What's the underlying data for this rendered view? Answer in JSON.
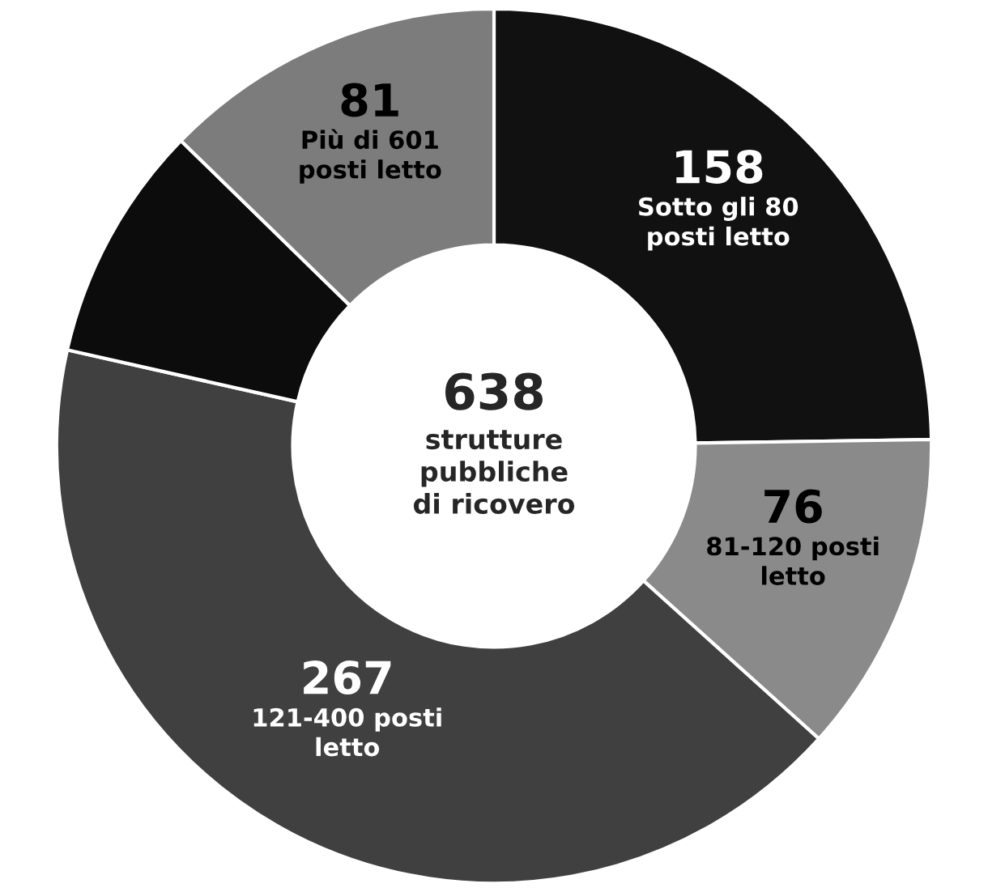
{
  "chart_data": {
    "type": "donut",
    "categories": [
      "Sotto gli 80 posti letto",
      "81-120 posti letto",
      "121-400 posti letto",
      null,
      "Più di 601 posti letto"
    ],
    "values": [
      158,
      76,
      267,
      56,
      81
    ],
    "value_labels": [
      "158",
      "76",
      "267",
      null,
      "81"
    ],
    "colors": [
      "#111111",
      "#8a8a8a",
      "#404040",
      "#0c0c0c",
      "#7c7c7c"
    ],
    "annotations": [
      "638\nstrutture\npubbliche\ndi ricovero"
    ]
  }
}
